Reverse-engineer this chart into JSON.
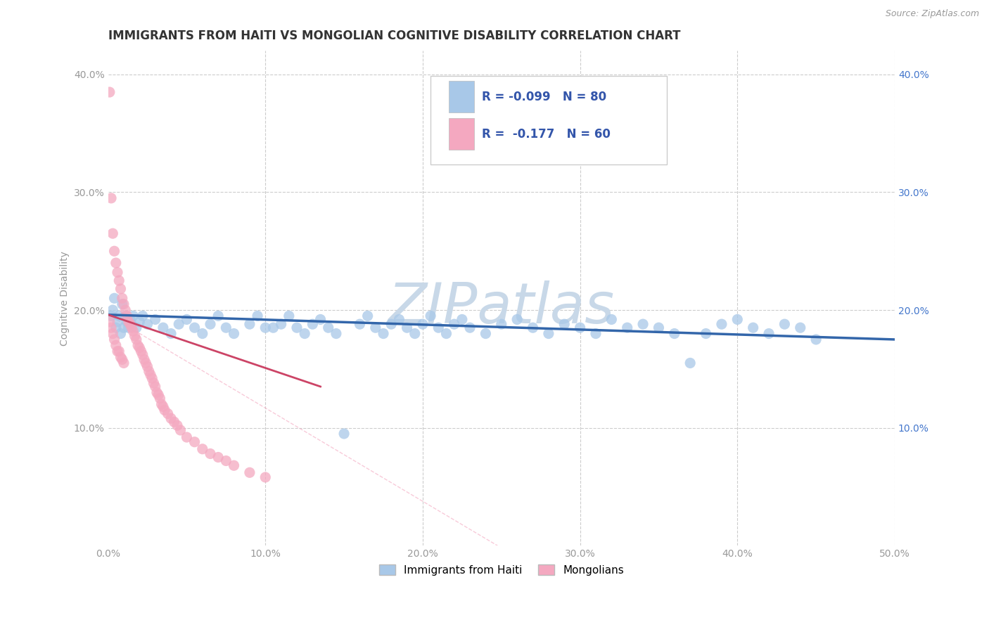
{
  "title": "IMMIGRANTS FROM HAITI VS MONGOLIAN COGNITIVE DISABILITY CORRELATION CHART",
  "source": "Source: ZipAtlas.com",
  "ylabel": "Cognitive Disability",
  "xlim": [
    0.0,
    0.5
  ],
  "ylim": [
    0.0,
    0.42
  ],
  "xticks": [
    0.0,
    0.1,
    0.2,
    0.3,
    0.4,
    0.5
  ],
  "xticklabels": [
    "0.0%",
    "10.0%",
    "20.0%",
    "30.0%",
    "40.0%",
    "50.0%"
  ],
  "yticks": [
    0.0,
    0.1,
    0.2,
    0.3,
    0.4
  ],
  "left_yticklabels": [
    "",
    "10.0%",
    "20.0%",
    "30.0%",
    "40.0%"
  ],
  "right_yticklabels": [
    "",
    "10.0%",
    "20.0%",
    "30.0%",
    "40.0%"
  ],
  "legend_labels": [
    "Immigrants from Haiti",
    "Mongolians"
  ],
  "legend_r": [
    -0.099,
    -0.177
  ],
  "legend_n": [
    80,
    60
  ],
  "haiti_color": "#A8C8E8",
  "mongolia_color": "#F4A8C0",
  "haiti_line_color": "#3366AA",
  "mongolia_line_color": "#CC4466",
  "watermark_color": "#C8D8E8",
  "title_color": "#333333",
  "axis_color": "#999999",
  "grid_color": "#CCCCCC",
  "right_tick_color": "#4477CC",
  "title_fontsize": 12,
  "axis_label_fontsize": 10,
  "tick_fontsize": 10,
  "haiti_x": [
    0.002,
    0.003,
    0.004,
    0.005,
    0.006,
    0.007,
    0.008,
    0.009,
    0.01,
    0.011,
    0.012,
    0.013,
    0.014,
    0.015,
    0.016,
    0.018,
    0.02,
    0.022,
    0.025,
    0.03,
    0.035,
    0.04,
    0.045,
    0.05,
    0.055,
    0.06,
    0.065,
    0.07,
    0.075,
    0.08,
    0.09,
    0.095,
    0.1,
    0.105,
    0.11,
    0.115,
    0.12,
    0.125,
    0.13,
    0.135,
    0.14,
    0.145,
    0.15,
    0.16,
    0.165,
    0.17,
    0.175,
    0.18,
    0.185,
    0.19,
    0.195,
    0.2,
    0.205,
    0.21,
    0.215,
    0.22,
    0.225,
    0.23,
    0.24,
    0.25,
    0.26,
    0.27,
    0.28,
    0.29,
    0.3,
    0.31,
    0.32,
    0.33,
    0.34,
    0.35,
    0.36,
    0.37,
    0.38,
    0.39,
    0.4,
    0.41,
    0.42,
    0.43,
    0.44,
    0.45
  ],
  "haiti_y": [
    0.195,
    0.2,
    0.21,
    0.185,
    0.19,
    0.195,
    0.18,
    0.205,
    0.185,
    0.195,
    0.19,
    0.185,
    0.192,
    0.188,
    0.195,
    0.185,
    0.19,
    0.195,
    0.188,
    0.192,
    0.185,
    0.18,
    0.188,
    0.192,
    0.185,
    0.18,
    0.188,
    0.195,
    0.185,
    0.18,
    0.188,
    0.195,
    0.185,
    0.185,
    0.188,
    0.195,
    0.185,
    0.18,
    0.188,
    0.192,
    0.185,
    0.18,
    0.095,
    0.188,
    0.195,
    0.185,
    0.18,
    0.188,
    0.192,
    0.185,
    0.18,
    0.188,
    0.195,
    0.185,
    0.18,
    0.188,
    0.192,
    0.185,
    0.18,
    0.188,
    0.192,
    0.185,
    0.18,
    0.188,
    0.185,
    0.18,
    0.192,
    0.185,
    0.188,
    0.185,
    0.18,
    0.155,
    0.18,
    0.188,
    0.192,
    0.185,
    0.18,
    0.188,
    0.185,
    0.175
  ],
  "mongolia_x": [
    0.001,
    0.001,
    0.002,
    0.002,
    0.003,
    0.003,
    0.004,
    0.004,
    0.005,
    0.005,
    0.006,
    0.006,
    0.007,
    0.007,
    0.008,
    0.008,
    0.009,
    0.009,
    0.01,
    0.01,
    0.011,
    0.012,
    0.013,
    0.014,
    0.015,
    0.016,
    0.017,
    0.018,
    0.019,
    0.02,
    0.021,
    0.022,
    0.023,
    0.024,
    0.025,
    0.026,
    0.027,
    0.028,
    0.029,
    0.03,
    0.031,
    0.032,
    0.033,
    0.034,
    0.035,
    0.036,
    0.038,
    0.04,
    0.042,
    0.044,
    0.046,
    0.05,
    0.055,
    0.06,
    0.065,
    0.07,
    0.075,
    0.08,
    0.09,
    0.1
  ],
  "mongolia_y": [
    0.385,
    0.19,
    0.295,
    0.185,
    0.265,
    0.18,
    0.25,
    0.175,
    0.24,
    0.17,
    0.232,
    0.165,
    0.225,
    0.165,
    0.218,
    0.16,
    0.21,
    0.158,
    0.205,
    0.155,
    0.2,
    0.195,
    0.19,
    0.188,
    0.185,
    0.182,
    0.178,
    0.175,
    0.17,
    0.168,
    0.165,
    0.162,
    0.158,
    0.155,
    0.152,
    0.148,
    0.145,
    0.142,
    0.138,
    0.135,
    0.13,
    0.128,
    0.125,
    0.12,
    0.118,
    0.115,
    0.112,
    0.108,
    0.105,
    0.102,
    0.098,
    0.092,
    0.088,
    0.082,
    0.078,
    0.075,
    0.072,
    0.068,
    0.062,
    0.058
  ],
  "haiti_trend_x": [
    0.0,
    0.5
  ],
  "haiti_trend_y": [
    0.196,
    0.175
  ],
  "mongolia_trend_x": [
    0.0,
    0.135
  ],
  "mongolia_trend_y": [
    0.196,
    0.135
  ]
}
